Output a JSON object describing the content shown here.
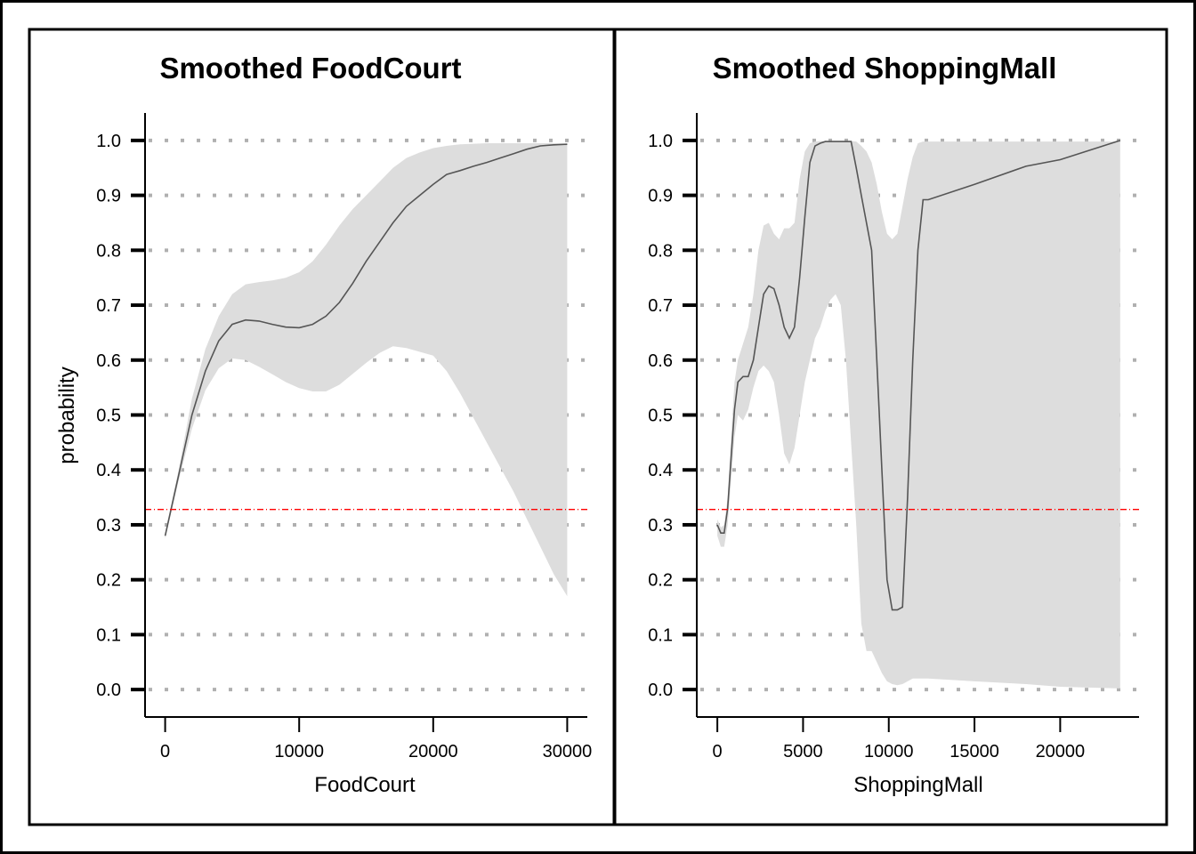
{
  "chart_data": [
    {
      "type": "line",
      "title": "Smoothed FoodCourt",
      "xlabel": "FoodCourt",
      "ylabel": "probability",
      "xlim": [
        -1500,
        31500
      ],
      "ylim": [
        -0.05,
        1.05
      ],
      "x_ticks": [
        0,
        10000,
        20000,
        30000
      ],
      "x_tick_labels": [
        "0",
        "10000",
        "20000",
        "30000"
      ],
      "y_ticks": [
        0.0,
        0.1,
        0.2,
        0.3,
        0.4,
        0.5,
        0.6,
        0.7,
        0.8,
        0.9,
        1.0
      ],
      "y_tick_labels": [
        "0.0",
        "0.1",
        "0.2",
        "0.3",
        "0.4",
        "0.5",
        "0.6",
        "0.7",
        "0.8",
        "0.9",
        "1.0"
      ],
      "grid": "horizontal dotted",
      "reference_line": {
        "y": 0.328,
        "color": "#ff0000",
        "style": "dash-dot"
      },
      "line_color": "#555555",
      "band_color": "#dddddd",
      "series": [
        {
          "x": [
            0,
            1000,
            2000,
            3000,
            4000,
            5000,
            6000,
            7000,
            8000,
            9000,
            10000,
            11000,
            12000,
            13000,
            14000,
            15000,
            16000,
            17000,
            18000,
            19000,
            20000,
            21000,
            22000,
            23000,
            24000,
            25000,
            26000,
            27000,
            28000,
            29000,
            30000
          ],
          "y": [
            0.28,
            0.39,
            0.5,
            0.58,
            0.635,
            0.665,
            0.673,
            0.671,
            0.665,
            0.66,
            0.659,
            0.665,
            0.68,
            0.705,
            0.74,
            0.78,
            0.815,
            0.85,
            0.88,
            0.9,
            0.92,
            0.938,
            0.945,
            0.953,
            0.96,
            0.968,
            0.976,
            0.984,
            0.99,
            0.992,
            0.993
          ],
          "lower": [
            0.275,
            0.38,
            0.475,
            0.545,
            0.585,
            0.603,
            0.6,
            0.588,
            0.574,
            0.56,
            0.549,
            0.543,
            0.543,
            0.555,
            0.575,
            0.595,
            0.613,
            0.625,
            0.622,
            0.615,
            0.608,
            0.58,
            0.54,
            0.495,
            0.45,
            0.405,
            0.36,
            0.31,
            0.26,
            0.21,
            0.17
          ],
          "upper": [
            0.285,
            0.4,
            0.53,
            0.62,
            0.68,
            0.72,
            0.738,
            0.742,
            0.745,
            0.75,
            0.76,
            0.78,
            0.81,
            0.845,
            0.875,
            0.9,
            0.925,
            0.95,
            0.968,
            0.978,
            0.986,
            0.99,
            0.993,
            0.994,
            0.995,
            0.995,
            0.995,
            0.995,
            0.995,
            0.995,
            0.995
          ]
        }
      ]
    },
    {
      "type": "line",
      "title": "Smoothed ShoppingMall",
      "xlabel": "ShoppingMall",
      "ylabel": "",
      "xlim": [
        -1200,
        24600
      ],
      "ylim": [
        -0.05,
        1.05
      ],
      "x_ticks": [
        0,
        5000,
        10000,
        15000,
        20000
      ],
      "x_tick_labels": [
        "0",
        "5000",
        "10000",
        "15000",
        "20000"
      ],
      "y_ticks": [
        0.0,
        0.1,
        0.2,
        0.3,
        0.4,
        0.5,
        0.6,
        0.7,
        0.8,
        0.9,
        1.0
      ],
      "y_tick_labels": [
        "0.0",
        "0.1",
        "0.2",
        "0.3",
        "0.4",
        "0.5",
        "0.6",
        "0.7",
        "0.8",
        "0.9",
        "1.0"
      ],
      "grid": "horizontal dotted",
      "reference_line": {
        "y": 0.328,
        "color": "#ff0000",
        "style": "dash-dot"
      },
      "line_color": "#555555",
      "band_color": "#dddddd",
      "series": [
        {
          "x": [
            0,
            200,
            400,
            600,
            800,
            1000,
            1200,
            1500,
            1800,
            2100,
            2400,
            2700,
            3000,
            3300,
            3600,
            3900,
            4200,
            4500,
            4800,
            5100,
            5400,
            5700,
            6000,
            6300,
            6600,
            6900,
            7200,
            7500,
            7800,
            8100,
            8400,
            8700,
            9000,
            9300,
            9600,
            9900,
            10200,
            10500,
            10800,
            11100,
            11400,
            11700,
            12000,
            12300,
            15000,
            18000,
            20000,
            23500
          ],
          "y": [
            0.3,
            0.285,
            0.285,
            0.33,
            0.42,
            0.51,
            0.56,
            0.57,
            0.57,
            0.6,
            0.66,
            0.72,
            0.735,
            0.73,
            0.7,
            0.66,
            0.64,
            0.66,
            0.75,
            0.86,
            0.96,
            0.99,
            0.995,
            0.998,
            0.998,
            0.998,
            0.998,
            0.998,
            0.998,
            0.95,
            0.9,
            0.85,
            0.8,
            0.6,
            0.4,
            0.2,
            0.145,
            0.145,
            0.15,
            0.35,
            0.6,
            0.8,
            0.892,
            0.892,
            0.92,
            0.953,
            0.965,
            1.0
          ],
          "lower": [
            0.28,
            0.26,
            0.26,
            0.3,
            0.38,
            0.46,
            0.5,
            0.49,
            0.51,
            0.55,
            0.58,
            0.59,
            0.58,
            0.56,
            0.5,
            0.43,
            0.41,
            0.44,
            0.5,
            0.56,
            0.6,
            0.64,
            0.66,
            0.69,
            0.71,
            0.72,
            0.7,
            0.6,
            0.45,
            0.3,
            0.12,
            0.07,
            0.07,
            0.05,
            0.03,
            0.015,
            0.01,
            0.008,
            0.01,
            0.015,
            0.02,
            0.02,
            0.02,
            0.02,
            0.015,
            0.01,
            0.005,
            0.002
          ],
          "upper": [
            0.31,
            0.295,
            0.3,
            0.35,
            0.46,
            0.56,
            0.6,
            0.63,
            0.66,
            0.72,
            0.8,
            0.845,
            0.85,
            0.83,
            0.82,
            0.84,
            0.84,
            0.85,
            0.93,
            0.98,
            0.995,
            0.998,
            0.999,
            0.999,
            0.999,
            0.999,
            0.999,
            0.999,
            0.999,
            0.998,
            0.99,
            0.98,
            0.96,
            0.92,
            0.87,
            0.83,
            0.82,
            0.83,
            0.88,
            0.93,
            0.97,
            0.995,
            0.998,
            0.998,
            0.998,
            0.998,
            0.998,
            0.998
          ]
        }
      ]
    }
  ]
}
